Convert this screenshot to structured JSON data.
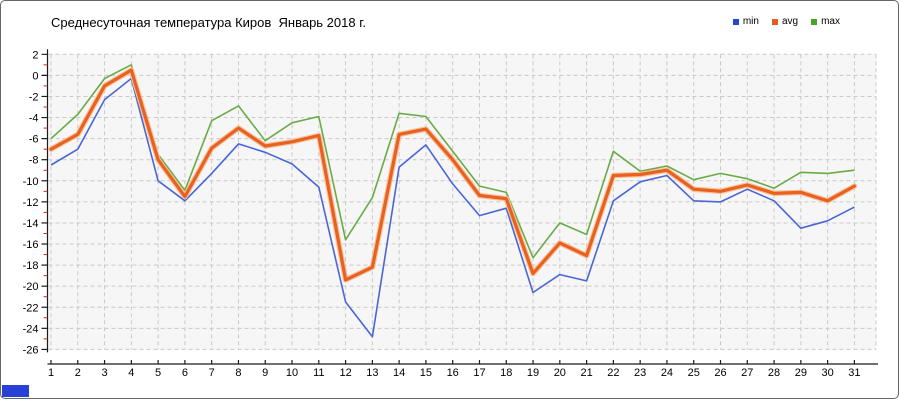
{
  "title": "Среднесуточная температура Киров  Январь 2018 г.",
  "legend": {
    "items": [
      {
        "label": "min",
        "color": "#2544d8"
      },
      {
        "label": "avg",
        "color": "#e55c1c"
      },
      {
        "label": "max",
        "color": "#4aa327"
      }
    ]
  },
  "colors": {
    "min_line": "#4a66d5",
    "avg_line": "#e8611f",
    "avg_halo": "#f6c29d",
    "max_line": "#6aab47",
    "plot_bg": "#f6f6f6",
    "grid": "#c9c9c9",
    "axis": "#1a1a1a",
    "minor_tick": "#cc2a1e",
    "bottom_left_bar": "#2741d6"
  },
  "chart_data": {
    "type": "line",
    "title": "Среднесуточная температура Киров  Январь 2018 г.",
    "xlabel": "",
    "ylabel": "",
    "x": [
      1,
      2,
      3,
      4,
      5,
      6,
      7,
      8,
      9,
      10,
      11,
      12,
      13,
      14,
      15,
      16,
      17,
      18,
      19,
      20,
      21,
      22,
      23,
      24,
      25,
      26,
      27,
      28,
      29,
      30,
      31
    ],
    "xticks": [
      "1",
      "2",
      "3",
      "4",
      "5",
      "6",
      "7",
      "8",
      "9",
      "10",
      "11",
      "12",
      "13",
      "14",
      "15",
      "16",
      "17",
      "18",
      "19",
      "20",
      "21",
      "22",
      "23",
      "24",
      "25",
      "26",
      "27",
      "28",
      "29",
      "30",
      "31"
    ],
    "yticks": [
      2,
      0,
      -2,
      -4,
      -6,
      -8,
      -10,
      -12,
      -14,
      -16,
      -18,
      -20,
      -22,
      -24,
      -26
    ],
    "ylim": [
      -26,
      2
    ],
    "grid": "dashed, both axes, light gray on pale gray panel",
    "legend_position": "top-right",
    "series": [
      {
        "name": "min",
        "color": "#4a66d5",
        "values": [
          -8.5,
          -7.0,
          -2.3,
          -0.3,
          -10.0,
          -11.9,
          -9.3,
          -6.5,
          -7.3,
          -8.4,
          -10.6,
          -21.5,
          -24.8,
          -8.7,
          -6.6,
          -10.3,
          -13.3,
          -12.6,
          -20.6,
          -18.9,
          -19.5,
          -11.9,
          -10.1,
          -9.5,
          -11.9,
          -12.0,
          -10.8,
          -11.9,
          -14.5,
          -13.8,
          -12.5
        ]
      },
      {
        "name": "avg",
        "color": "#e8611f",
        "values": [
          -7.0,
          -5.6,
          -1.0,
          0.5,
          -8.0,
          -11.5,
          -6.9,
          -5.0,
          -6.7,
          -6.3,
          -5.7,
          -19.4,
          -18.2,
          -5.6,
          -5.1,
          -8.0,
          -11.4,
          -11.7,
          -18.8,
          -15.9,
          -17.1,
          -9.5,
          -9.4,
          -9.0,
          -10.8,
          -11.0,
          -10.4,
          -11.2,
          -11.1,
          -11.9,
          -10.5
        ]
      },
      {
        "name": "max",
        "color": "#6aab47",
        "values": [
          -6.0,
          -3.7,
          -0.3,
          1.0,
          -7.5,
          -10.9,
          -4.3,
          -2.9,
          -6.2,
          -4.5,
          -3.9,
          -15.6,
          -11.6,
          -3.6,
          -3.9,
          -7.2,
          -10.5,
          -11.1,
          -17.3,
          -14.0,
          -15.1,
          -7.2,
          -9.1,
          -8.6,
          -9.9,
          -9.3,
          -9.8,
          -10.7,
          -9.2,
          -9.3,
          -9.0
        ]
      }
    ]
  }
}
